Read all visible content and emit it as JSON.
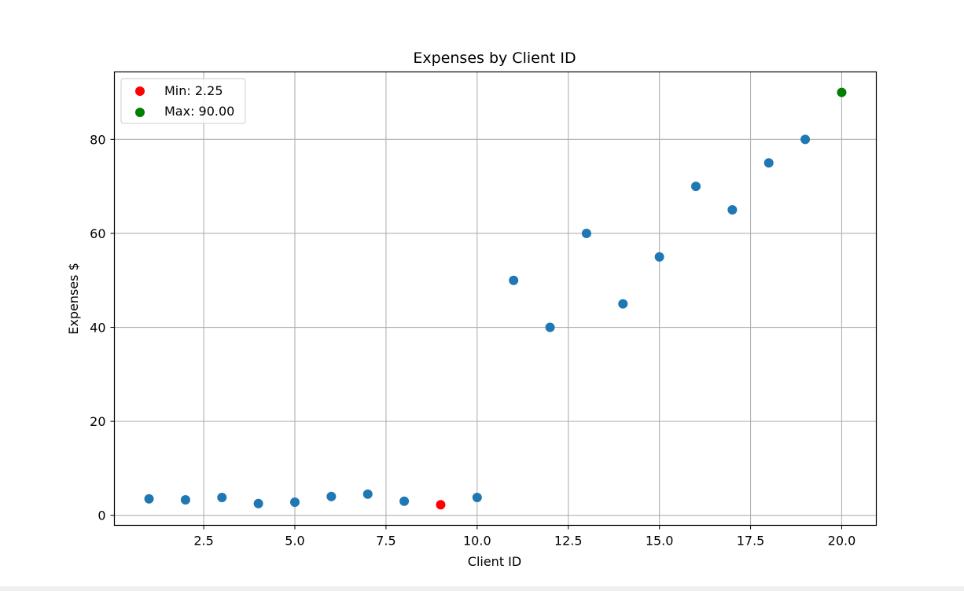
{
  "chart_data": {
    "type": "scatter",
    "title": "Expenses by Client ID",
    "xlabel": "Client ID",
    "ylabel": "Expenses $",
    "xlim": [
      0.05,
      20.95
    ],
    "ylim": [
      -2.14,
      94.36
    ],
    "x_ticks": [
      2.5,
      5.0,
      7.5,
      10.0,
      12.5,
      15.0,
      17.5,
      20.0
    ],
    "x_tick_labels": [
      "2.5",
      "5.0",
      "7.5",
      "10.0",
      "12.5",
      "15.0",
      "17.5",
      "20.0"
    ],
    "y_ticks": [
      0,
      20,
      40,
      60,
      80
    ],
    "y_tick_labels": [
      "0",
      "20",
      "40",
      "60",
      "80"
    ],
    "grid": true,
    "legend_position": "top-left",
    "series": [
      {
        "name": "Expenses",
        "color": "#1f77b4",
        "x": [
          1,
          2,
          3,
          4,
          5,
          6,
          7,
          8,
          10,
          11,
          12,
          13,
          14,
          15,
          16,
          17,
          18,
          19
        ],
        "y": [
          3.5,
          3.3,
          3.8,
          2.5,
          2.8,
          4.0,
          4.5,
          3.0,
          3.8,
          50,
          40,
          60,
          45,
          55,
          70,
          65,
          75,
          80
        ]
      },
      {
        "name": "Min: 2.25",
        "color": "#ff0000",
        "x": [
          9
        ],
        "y": [
          2.25
        ]
      },
      {
        "name": "Max: 90.00",
        "color": "#008000",
        "x": [
          20
        ],
        "y": [
          90.0
        ]
      }
    ],
    "legend": [
      {
        "label": "Min: 2.25",
        "color": "#ff0000"
      },
      {
        "label": "Max: 90.00",
        "color": "#008000"
      }
    ]
  }
}
